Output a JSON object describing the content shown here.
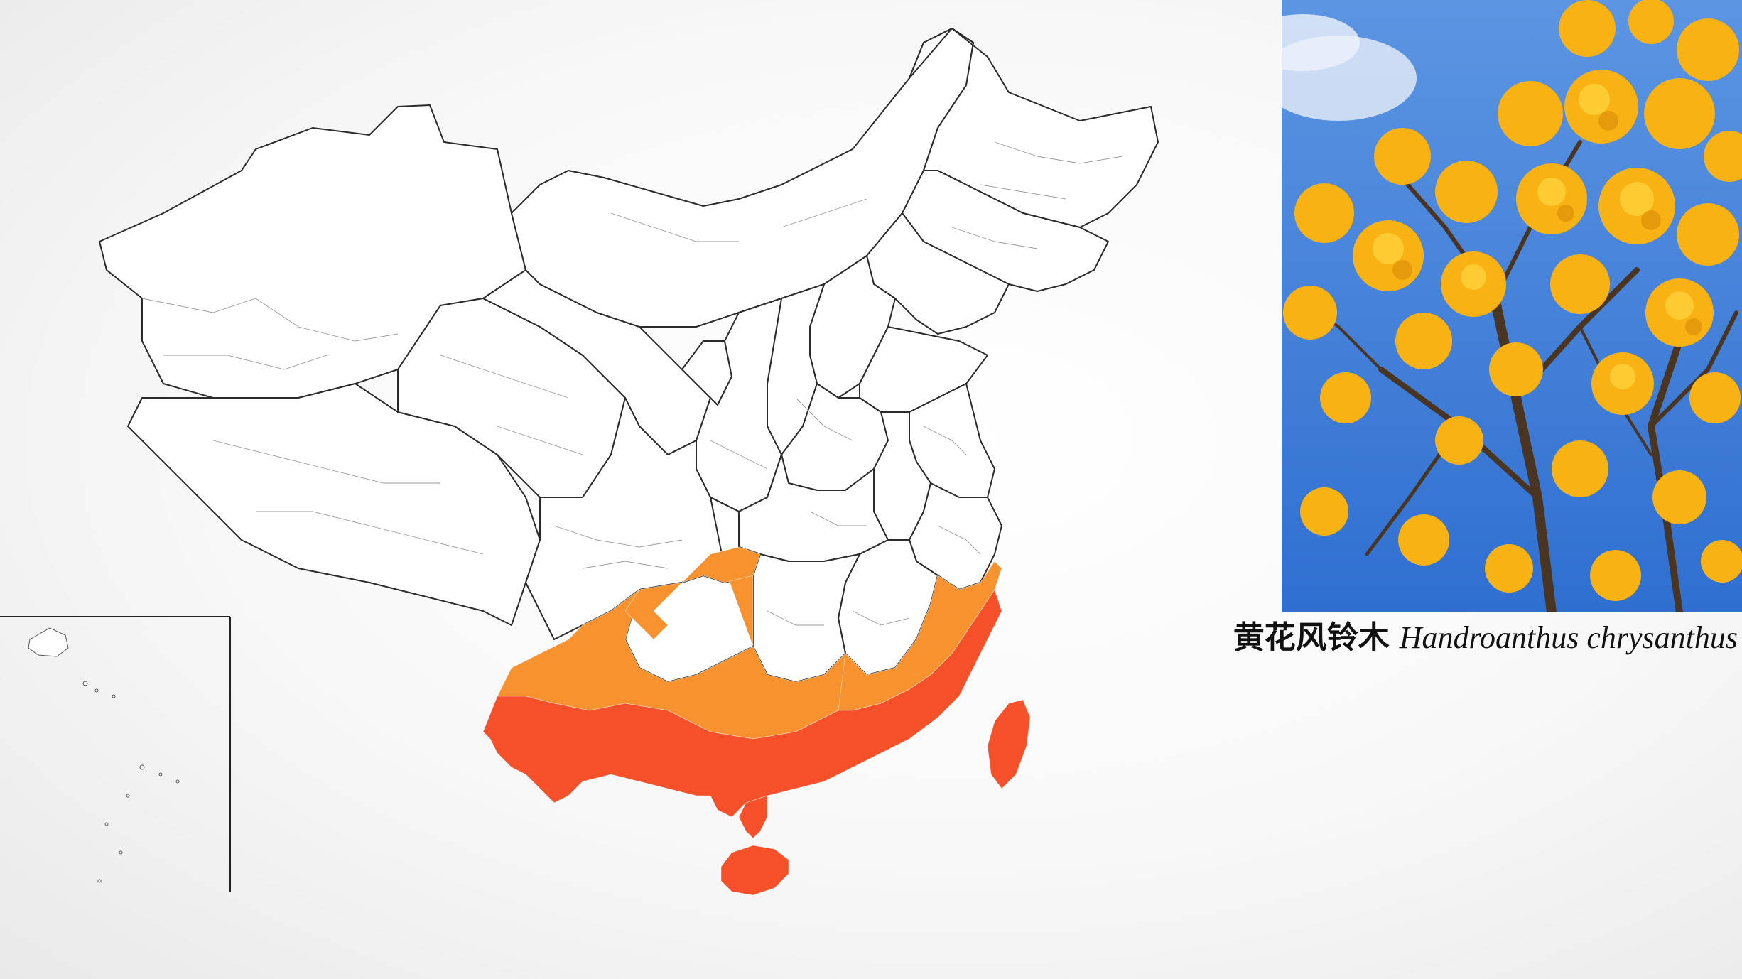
{
  "caption": {
    "chinese_name": "黄花风铃木",
    "latin_name": "Handroanthus chrysanthus"
  },
  "legend_colors": {
    "high_suitability": "#f5502a",
    "mid_suitability": "#f7922e",
    "unsuitable": "#ffffff"
  },
  "photo": {
    "sky_color": "#3f7fd8",
    "flower_color": "#f8b214",
    "branch_color": "#4a3522"
  }
}
